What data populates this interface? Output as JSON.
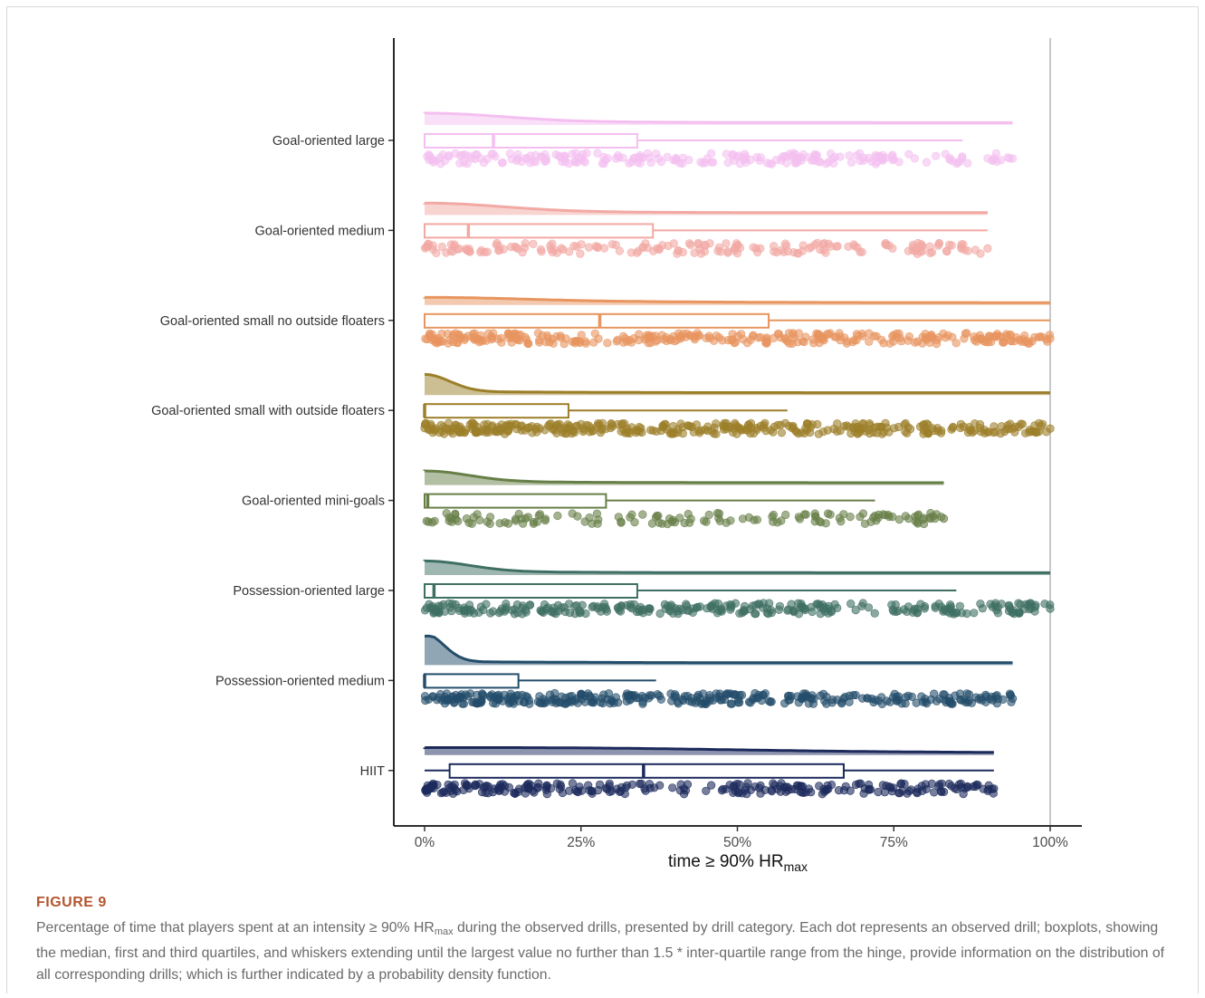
{
  "chart_data": {
    "type": "raincloud",
    "xlabel_parts": [
      "time ≥ 90% HR",
      "max"
    ],
    "xlim": [
      0,
      100
    ],
    "x_ticks": [
      0,
      25,
      50,
      75,
      100
    ],
    "x_tick_labels": [
      "0%",
      "25%",
      "50%",
      "75%",
      "100%"
    ],
    "reference_line": 100,
    "categories": [
      {
        "name": "Goal-oriented large",
        "color": "#f4bff0",
        "q1": 0,
        "median": 11,
        "q3": 34,
        "whisker_low": 0,
        "whisker_high": 86,
        "max": 94,
        "n": 220,
        "density_peak": 0.8,
        "density_spread": 12
      },
      {
        "name": "Goal-oriented medium",
        "color": "#f2a9a4",
        "q1": 0,
        "median": 7,
        "q3": 36.5,
        "whisker_low": 0,
        "whisker_high": 90,
        "max": 90,
        "n": 180,
        "density_peak": 0.8,
        "density_spread": 12
      },
      {
        "name": "Goal-oriented small no outside floaters",
        "color": "#e8955f",
        "q1": 0,
        "median": 28,
        "q3": 55,
        "whisker_low": 0,
        "whisker_high": 100,
        "max": 100,
        "n": 320,
        "density_peak": 0.45,
        "density_spread": 15
      },
      {
        "name": "Goal-oriented small with outside floaters",
        "color": "#9c7f29",
        "q1": 0,
        "median": 0,
        "q3": 23,
        "whisker_low": 0,
        "whisker_high": 58,
        "max": 100,
        "n": 380,
        "density_peak": 1.6,
        "density_spread": 4
      },
      {
        "name": "Goal-oriented mini-goals",
        "color": "#677f47",
        "q1": 0,
        "median": 0.5,
        "q3": 29,
        "whisker_low": 0,
        "whisker_high": 72,
        "max": 83,
        "n": 140,
        "density_peak": 1.0,
        "density_spread": 7
      },
      {
        "name": "Possession-oriented large",
        "color": "#3f6f63",
        "q1": 0,
        "median": 1.5,
        "q3": 34,
        "whisker_low": 0,
        "whisker_high": 85,
        "max": 100,
        "n": 300,
        "density_peak": 1.0,
        "density_spread": 7
      },
      {
        "name": "Possession-oriented medium",
        "color": "#234d6a",
        "q1": 0,
        "median": 0,
        "q3": 15,
        "whisker_low": 0,
        "whisker_high": 37,
        "max": 94,
        "n": 340,
        "density_peak": 2.6,
        "density_spread": 3
      },
      {
        "name": "HIIT",
        "color": "#1c2a5c",
        "q1": 4,
        "median": 35,
        "q3": 67,
        "whisker_low": 0,
        "whisker_high": 91,
        "max": 91,
        "n": 260,
        "density_peak": 0.45,
        "density_spread": 40
      }
    ]
  },
  "caption": {
    "label": "FIGURE 9",
    "text_part1": "Percentage of time that players spent at an intensity ≥ 90% HR",
    "text_sub": "max",
    "text_part2": " during the observed drills, presented by drill category. Each dot represents an observed drill; boxplots, showing the median, first and third quartiles, and whiskers extending until the largest value no further than 1.5 * inter-quartile range from the hinge, provide information on the distribution of all corresponding drills; which is further indicated by a probability density function."
  }
}
